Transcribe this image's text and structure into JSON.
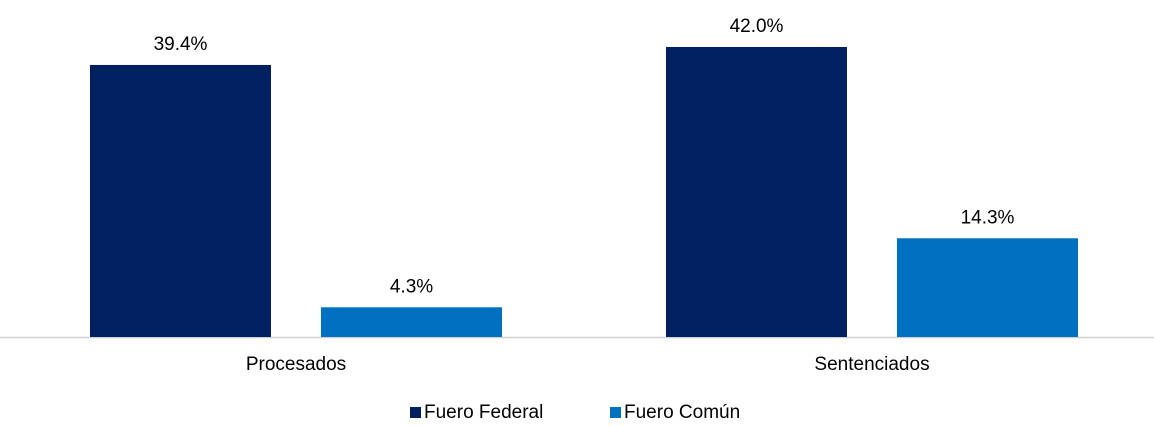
{
  "chart_data": {
    "type": "bar",
    "categories": [
      "Procesados",
      "Sentenciados"
    ],
    "series": [
      {
        "name": "Fuero Federal",
        "color": "#002060",
        "values": [
          39.4,
          42.0
        ],
        "value_labels": [
          "39.4%",
          "42.0%"
        ]
      },
      {
        "name": "Fuero Común",
        "color": "#0070c0",
        "values": [
          4.3,
          14.3
        ],
        "value_labels": [
          "4.3%",
          "14.3%"
        ]
      }
    ],
    "legend": "bottom"
  }
}
